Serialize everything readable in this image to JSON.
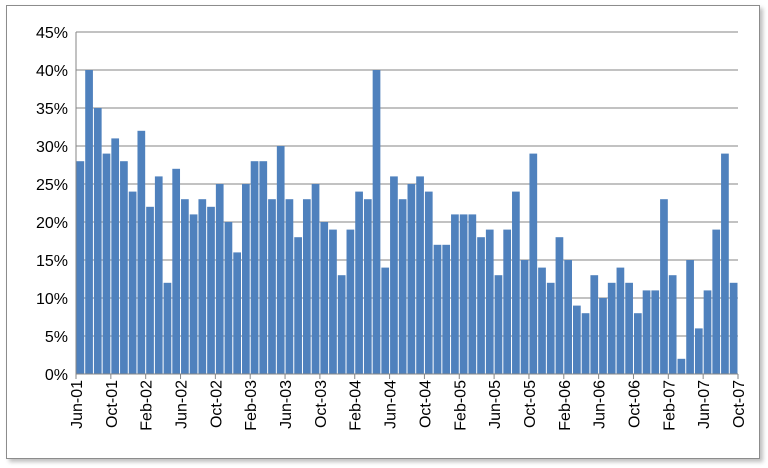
{
  "chart_data": {
    "type": "bar",
    "x_ticks": [
      "Jun-01",
      "Oct-01",
      "Feb-02",
      "Jun-02",
      "Oct-02",
      "Feb-03",
      "Jun-03",
      "Oct-03",
      "Feb-04",
      "Jun-04",
      "Oct-04",
      "Feb-05",
      "Jun-05",
      "Oct-05",
      "Feb-06",
      "Jun-06",
      "Oct-06",
      "Feb-07",
      "Jun-07",
      "Oct-07"
    ],
    "y_ticks": [
      "0%",
      "5%",
      "10%",
      "15%",
      "20%",
      "25%",
      "30%",
      "35%",
      "40%",
      "45%"
    ],
    "ylim": [
      0,
      45
    ],
    "grid": true,
    "legend": "none",
    "start_month": "Jun-01",
    "values": [
      28,
      40,
      35,
      29,
      31,
      28,
      24,
      32,
      22,
      26,
      12,
      27,
      23,
      21,
      23,
      22,
      25,
      20,
      16,
      25,
      28,
      28,
      23,
      30,
      23,
      18,
      23,
      25,
      20,
      19,
      13,
      19,
      24,
      23,
      40,
      14,
      26,
      23,
      25,
      26,
      24,
      17,
      17,
      21,
      21,
      21,
      18,
      19,
      13,
      19,
      24,
      15,
      29,
      14,
      12,
      18,
      15,
      9,
      8,
      13,
      10,
      12,
      14,
      12,
      8,
      11,
      11,
      23,
      13,
      2,
      15,
      6,
      11,
      19,
      29,
      12
    ],
    "bar_color": "#4f81bd"
  }
}
